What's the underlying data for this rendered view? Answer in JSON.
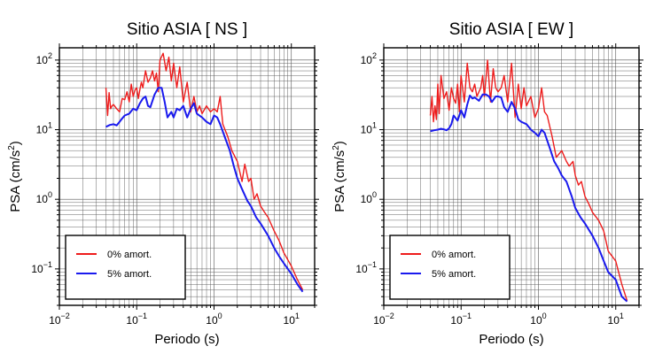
{
  "chart_data": [
    {
      "type": "line",
      "title": "Sitio ASIA [ NS ]",
      "xlabel": "Periodo (s)",
      "ylabel_main": "PSA (cm/s",
      "ylabel_sup": "2",
      "ylabel_tail": ")",
      "xscale": "log",
      "yscale": "log",
      "xlim": [
        0.01,
        20
      ],
      "ylim": [
        0.03,
        150
      ],
      "grid": true,
      "legend_position": "bottom-left",
      "x_ticks": [
        {
          "value": 0.01,
          "base": "10",
          "exp": "−2"
        },
        {
          "value": 0.1,
          "base": "10",
          "exp": "−1"
        },
        {
          "value": 1,
          "base": "10",
          "exp": "0"
        },
        {
          "value": 10,
          "base": "10",
          "exp": "1"
        }
      ],
      "y_ticks": [
        {
          "value": 0.1,
          "base": "10",
          "exp": "−1"
        },
        {
          "value": 1,
          "base": "10",
          "exp": "0"
        },
        {
          "value": 10,
          "base": "10",
          "exp": "1"
        },
        {
          "value": 100,
          "base": "10",
          "exp": "2"
        }
      ],
      "series": [
        {
          "name": "0% amort.",
          "color": "#ee1c1c",
          "x": [
            0.04,
            0.042,
            0.044,
            0.046,
            0.048,
            0.05,
            0.055,
            0.06,
            0.065,
            0.07,
            0.075,
            0.08,
            0.085,
            0.09,
            0.095,
            0.1,
            0.105,
            0.11,
            0.115,
            0.12,
            0.13,
            0.14,
            0.15,
            0.16,
            0.17,
            0.18,
            0.19,
            0.2,
            0.22,
            0.24,
            0.26,
            0.28,
            0.3,
            0.33,
            0.36,
            0.4,
            0.45,
            0.5,
            0.55,
            0.6,
            0.65,
            0.7,
            0.8,
            0.9,
            1.0,
            1.1,
            1.2,
            1.3,
            1.5,
            1.7,
            2.0,
            2.3,
            2.5,
            2.8,
            3.0,
            3.3,
            3.6,
            4.0,
            4.5,
            5.0,
            6.0,
            7.0,
            8.0,
            10.0,
            12.0,
            14.0
          ],
          "y": [
            40,
            16,
            34,
            20,
            22,
            23,
            20,
            18,
            28,
            27,
            35,
            25,
            45,
            30,
            37,
            40,
            28,
            38,
            48,
            40,
            70,
            48,
            55,
            70,
            50,
            65,
            35,
            100,
            125,
            70,
            110,
            50,
            90,
            40,
            80,
            25,
            48,
            18,
            30,
            18,
            22,
            17,
            22,
            18,
            20,
            18,
            30,
            12,
            8,
            5,
            3.5,
            1.8,
            3.2,
            1.8,
            2.0,
            1.0,
            1.2,
            0.8,
            0.65,
            0.55,
            0.35,
            0.25,
            0.17,
            0.11,
            0.07,
            0.05
          ]
        },
        {
          "name": "5% amort.",
          "color": "#1a1aee",
          "x": [
            0.04,
            0.045,
            0.05,
            0.055,
            0.06,
            0.065,
            0.07,
            0.08,
            0.09,
            0.1,
            0.11,
            0.12,
            0.13,
            0.14,
            0.15,
            0.17,
            0.19,
            0.21,
            0.23,
            0.25,
            0.28,
            0.3,
            0.33,
            0.36,
            0.4,
            0.45,
            0.5,
            0.55,
            0.6,
            0.7,
            0.8,
            0.9,
            1.0,
            1.1,
            1.2,
            1.4,
            1.6,
            1.8,
            2.0,
            2.3,
            2.7,
            3.0,
            3.5,
            4.0,
            5.0,
            6.0,
            7.0,
            8.0,
            10.0,
            12.0,
            14.0
          ],
          "y": [
            11,
            11.7,
            12,
            11.5,
            13,
            14.5,
            16,
            17,
            20,
            19,
            24,
            28,
            30,
            22,
            21,
            32,
            40,
            40,
            25,
            15,
            18,
            15,
            20,
            19,
            22,
            15,
            20,
            24,
            17,
            15,
            13,
            12,
            16,
            15,
            12,
            7.5,
            5,
            3,
            2,
            1.4,
            0.95,
            0.8,
            0.55,
            0.45,
            0.3,
            0.2,
            0.15,
            0.12,
            0.085,
            0.06,
            0.047
          ]
        }
      ]
    },
    {
      "type": "line",
      "title": "Sitio ASIA [ EW ]",
      "xlabel": "Periodo (s)",
      "ylabel_main": "PSA (cm/s",
      "ylabel_sup": "2",
      "ylabel_tail": ")",
      "xscale": "log",
      "yscale": "log",
      "xlim": [
        0.01,
        20
      ],
      "ylim": [
        0.03,
        150
      ],
      "grid": true,
      "legend_position": "bottom-left",
      "x_ticks": [
        {
          "value": 0.01,
          "base": "10",
          "exp": "−2"
        },
        {
          "value": 0.1,
          "base": "10",
          "exp": "−1"
        },
        {
          "value": 1,
          "base": "10",
          "exp": "0"
        },
        {
          "value": 10,
          "base": "10",
          "exp": "1"
        }
      ],
      "y_ticks": [
        {
          "value": 0.1,
          "base": "10",
          "exp": "−1"
        },
        {
          "value": 1,
          "base": "10",
          "exp": "0"
        },
        {
          "value": 10,
          "base": "10",
          "exp": "1"
        },
        {
          "value": 100,
          "base": "10",
          "exp": "2"
        }
      ],
      "series": [
        {
          "name": "0% amort.",
          "color": "#ee1c1c",
          "x": [
            0.04,
            0.042,
            0.044,
            0.046,
            0.048,
            0.05,
            0.052,
            0.055,
            0.06,
            0.065,
            0.07,
            0.075,
            0.08,
            0.085,
            0.09,
            0.095,
            0.1,
            0.11,
            0.12,
            0.13,
            0.14,
            0.15,
            0.16,
            0.17,
            0.18,
            0.19,
            0.2,
            0.22,
            0.24,
            0.26,
            0.28,
            0.3,
            0.33,
            0.36,
            0.4,
            0.45,
            0.5,
            0.55,
            0.6,
            0.65,
            0.7,
            0.8,
            0.9,
            1.0,
            1.1,
            1.2,
            1.3,
            1.5,
            1.7,
            2.0,
            2.3,
            2.5,
            2.8,
            3.0,
            3.3,
            3.6,
            4.0,
            4.5,
            5.0,
            6.0,
            7.0,
            8.0,
            10.0,
            12.0,
            14.0
          ],
          "y": [
            16,
            30,
            13,
            22,
            14,
            45,
            17,
            60,
            28,
            35,
            19,
            40,
            28,
            24,
            45,
            18,
            60,
            25,
            90,
            40,
            35,
            45,
            30,
            35,
            40,
            60,
            30,
            100,
            25,
            75,
            40,
            35,
            40,
            60,
            25,
            90,
            15,
            45,
            20,
            40,
            22,
            30,
            15,
            20,
            40,
            18,
            16,
            8,
            4,
            5,
            3.5,
            3,
            3.5,
            2.2,
            1.6,
            1.8,
            1.1,
            0.85,
            0.65,
            0.5,
            0.35,
            0.18,
            0.13,
            0.06,
            0.035
          ]
        },
        {
          "name": "5% amort.",
          "color": "#1a1aee",
          "x": [
            0.04,
            0.045,
            0.05,
            0.055,
            0.06,
            0.065,
            0.07,
            0.075,
            0.08,
            0.09,
            0.1,
            0.11,
            0.12,
            0.13,
            0.14,
            0.15,
            0.17,
            0.19,
            0.21,
            0.23,
            0.25,
            0.28,
            0.3,
            0.33,
            0.36,
            0.4,
            0.45,
            0.5,
            0.55,
            0.6,
            0.7,
            0.8,
            0.9,
            1.0,
            1.1,
            1.2,
            1.4,
            1.6,
            1.8,
            2.0,
            2.3,
            2.7,
            3.0,
            3.5,
            4.0,
            5.0,
            6.0,
            7.0,
            8.0,
            10.0,
            12.0,
            14.0
          ],
          "y": [
            9.5,
            9.8,
            10,
            10.3,
            10.1,
            9.8,
            10.5,
            12,
            16,
            13.5,
            19,
            15,
            23,
            31,
            28,
            29,
            26,
            32,
            32,
            30,
            25,
            30,
            30,
            29,
            21,
            18,
            25,
            20,
            14,
            13,
            12,
            10,
            9,
            8,
            10,
            9,
            5.5,
            3.5,
            2.8,
            2.2,
            1.8,
            1.1,
            0.75,
            0.55,
            0.45,
            0.3,
            0.2,
            0.13,
            0.09,
            0.07,
            0.04,
            0.034
          ]
        }
      ]
    }
  ]
}
